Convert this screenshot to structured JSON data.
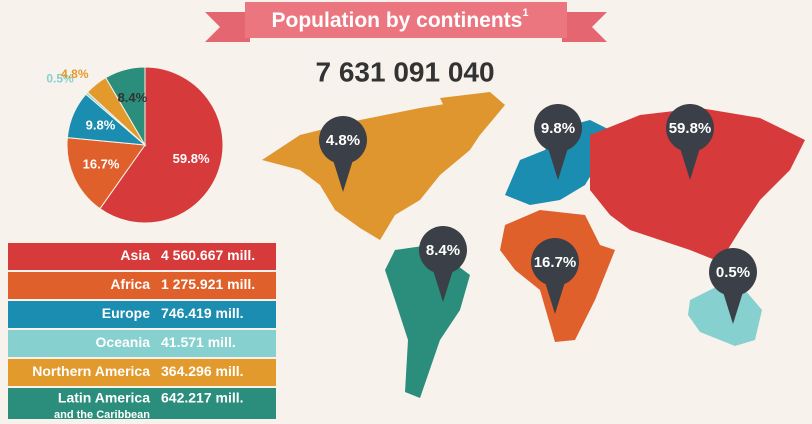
{
  "title": "Population by continents",
  "title_note": "1",
  "total": "7 631 091 040",
  "chart_data": {
    "type": "pie",
    "values": [
      59.8,
      16.7,
      9.8,
      0.5,
      4.8,
      8.4
    ],
    "value_labels": [
      "59.8%",
      "16.7%",
      "9.8%",
      "0.5%",
      "4.8%",
      "8.4%"
    ],
    "colors": [
      "#d63a3a",
      "#e0602c",
      "#1b8db0",
      "#86d0cf",
      "#e39a2d",
      "#2b8d7b"
    ]
  },
  "table": {
    "rows": [
      {
        "name": "Asia",
        "amount": "4 560.667 mill."
      },
      {
        "name": "Africa",
        "amount": "1 275.921 mill."
      },
      {
        "name": "Europe",
        "amount": "746.419 mill."
      },
      {
        "name": "Oceania",
        "amount": "41.571 mill."
      },
      {
        "name": "Northern America",
        "amount": "364.296 mill."
      },
      {
        "name": "Latin America",
        "subname": "and the Caribbean",
        "amount": "642.217 mill."
      }
    ]
  },
  "map": {
    "pins": [
      "59.8%",
      "16.7%",
      "9.8%",
      "0.5%",
      "4.8%",
      "8.4%"
    ]
  }
}
